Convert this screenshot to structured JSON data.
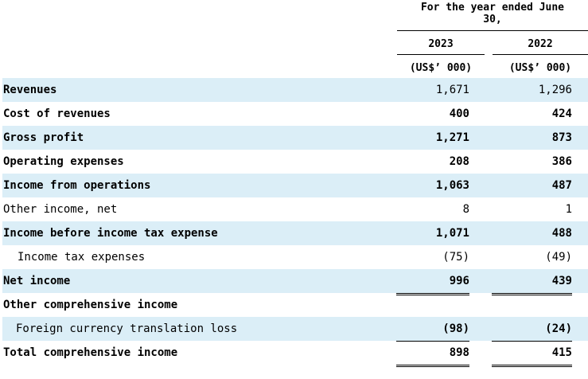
{
  "header": {
    "period_line1": "For the year ended June",
    "period_line2": "30,",
    "year_2023": "2023",
    "year_2022": "2022",
    "unit_2023": "(US$’ 000)",
    "unit_2022": "(US$’ 000)"
  },
  "rows": [
    {
      "label": "Revenues",
      "v2023": "1,671",
      "v2022": "1,296"
    },
    {
      "label": "Cost of revenues",
      "v2023": "400",
      "v2022": "424"
    },
    {
      "label": "Gross profit",
      "v2023": "1,271",
      "v2022": "873"
    },
    {
      "label": "Operating expenses",
      "v2023": "208",
      "v2022": "386"
    },
    {
      "label": "Income from operations",
      "v2023": "1,063",
      "v2022": "487"
    },
    {
      "label": "Other income, net",
      "v2023": "8",
      "v2022": "1"
    },
    {
      "label": "Income before income tax expense",
      "v2023": "1,071",
      "v2022": "488"
    },
    {
      "label": "Income tax expenses",
      "v2023": "(75)",
      "v2022": "(49)"
    },
    {
      "label": "Net income",
      "v2023": "996",
      "v2022": "439"
    },
    {
      "label": "Other comprehensive income",
      "v2023": "",
      "v2022": ""
    },
    {
      "label": "Foreign currency translation loss",
      "v2023": "(98)",
      "v2022": "(24)"
    },
    {
      "label": "Total comprehensive income",
      "v2023": "898",
      "v2022": "415"
    }
  ]
}
